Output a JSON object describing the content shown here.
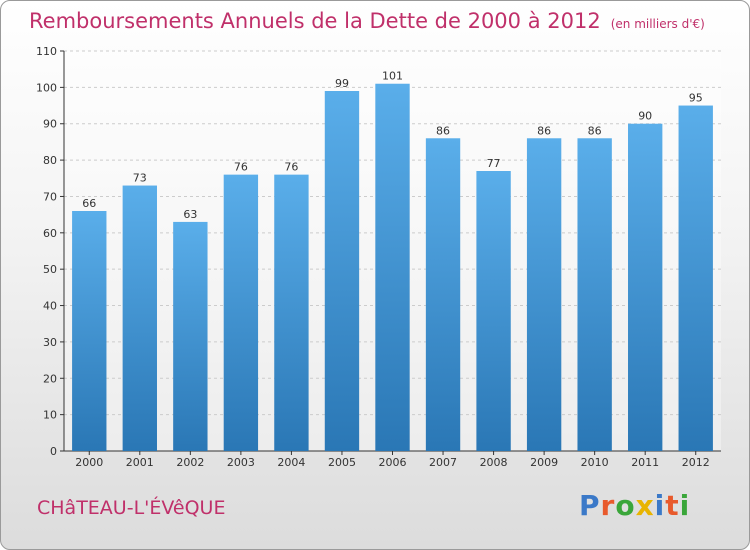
{
  "title": "Remboursements Annuels de la Dette de 2000 à 2012",
  "subtitle": "(en milliers d'€)",
  "commune": "CHâTEAU-L'ÉVêQUE",
  "logo": {
    "text": "Proxiti",
    "letter_colors": [
      "#3b79c8",
      "#e85a2c",
      "#3aa63a",
      "#e8b400",
      "#3b79c8",
      "#e85a2c",
      "#3aa63a"
    ]
  },
  "colors": {
    "bar_top": "#5aaeea",
    "bar_bottom": "#2a77b5",
    "title": "#c0306a",
    "grid": "#cccccc",
    "axis": "#333333"
  },
  "chart_data": {
    "type": "bar",
    "categories": [
      "2000",
      "2001",
      "2002",
      "2003",
      "2004",
      "2005",
      "2006",
      "2007",
      "2008",
      "2009",
      "2010",
      "2011",
      "2012"
    ],
    "values": [
      66,
      73,
      63,
      76,
      76,
      99,
      101,
      86,
      77,
      86,
      86,
      90,
      95
    ],
    "data_labels": [
      "66",
      "73",
      "63",
      "76",
      "76",
      "99",
      "101",
      "86",
      "77",
      "86",
      "86",
      "90",
      "95"
    ],
    "ylim": [
      0,
      110
    ],
    "yticks": [
      0,
      10,
      20,
      30,
      40,
      50,
      60,
      70,
      80,
      90,
      100,
      110
    ],
    "ytick_labels": [
      "0",
      "10",
      "20",
      "30",
      "40",
      "50",
      "60",
      "70",
      "80",
      "90",
      "100",
      "110"
    ],
    "grid": true,
    "title": "Remboursements Annuels de la Dette de 2000 à 2012",
    "xlabel": "",
    "ylabel": ""
  }
}
